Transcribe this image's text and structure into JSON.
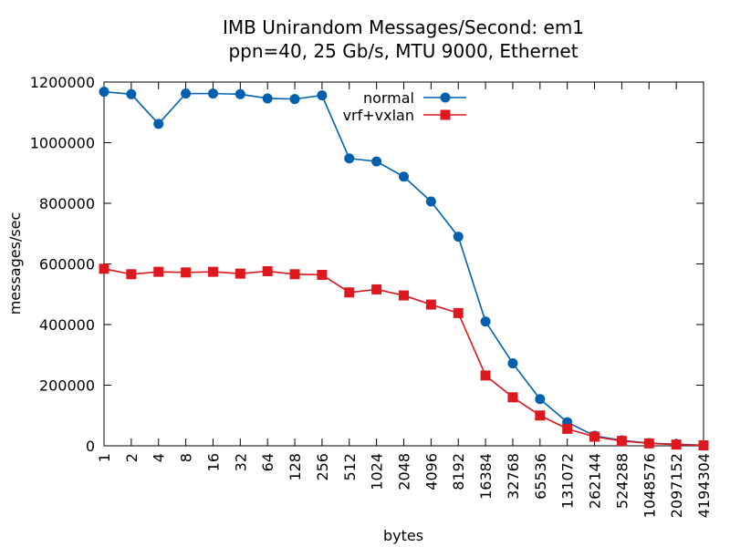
{
  "chart_data": {
    "type": "line",
    "title": "IMB Unirandom Messages/Second: em1",
    "subtitle": "ppn=40, 25 Gb/s, MTU 9000, Ethernet",
    "xlabel": "bytes",
    "ylabel": "messages/sec",
    "ylim": [
      0,
      1200000
    ],
    "yticks": [
      "0",
      "200000",
      "400000",
      "600000",
      "800000",
      "1000000",
      "1200000"
    ],
    "grid": false,
    "legend_position": "top-right",
    "categories": [
      "1",
      "2",
      "4",
      "8",
      "16",
      "32",
      "64",
      "128",
      "256",
      "512",
      "1024",
      "2048",
      "4096",
      "8192",
      "16384",
      "32768",
      "65536",
      "131072",
      "262144",
      "524288",
      "1048576",
      "2097152",
      "4194304"
    ],
    "series": [
      {
        "name": "normal",
        "color": "#0060ad",
        "marker": "circle",
        "values": [
          1168000,
          1160000,
          1062000,
          1162000,
          1162000,
          1160000,
          1146000,
          1144000,
          1156000,
          948000,
          938000,
          888000,
          806000,
          690000,
          410000,
          272000,
          154000,
          78000,
          33000,
          18000,
          9000,
          5000,
          2000
        ]
      },
      {
        "name": "vrf+vxlan",
        "color": "#dd181f",
        "marker": "square",
        "values": [
          584000,
          566000,
          574000,
          572000,
          574000,
          568000,
          576000,
          566000,
          564000,
          506000,
          516000,
          496000,
          466000,
          438000,
          232000,
          160000,
          100000,
          56000,
          30000,
          16000,
          8000,
          4000,
          1500
        ]
      }
    ]
  }
}
